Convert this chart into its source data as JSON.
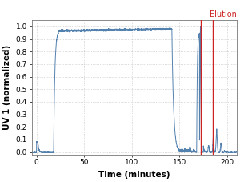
{
  "title": "",
  "xlabel": "Time (minutes)",
  "ylabel": "UV 1 (normalized)",
  "xlim": [
    -5,
    210
  ],
  "ylim": [
    -0.02,
    1.05
  ],
  "yticks": [
    0.0,
    0.1,
    0.2,
    0.3,
    0.4,
    0.5,
    0.6,
    0.7,
    0.8,
    0.9,
    1.0
  ],
  "xticks": [
    0,
    50,
    100,
    150,
    200
  ],
  "red_line1": 172,
  "red_line2": 185,
  "elution_label": "Elution",
  "line_color": "#4a7aaa",
  "red_color": "#cc2222",
  "grid_color": "#bbbbbb",
  "bg_color": "#ffffff",
  "figsize": [
    3.0,
    2.27
  ],
  "dpi": 100
}
